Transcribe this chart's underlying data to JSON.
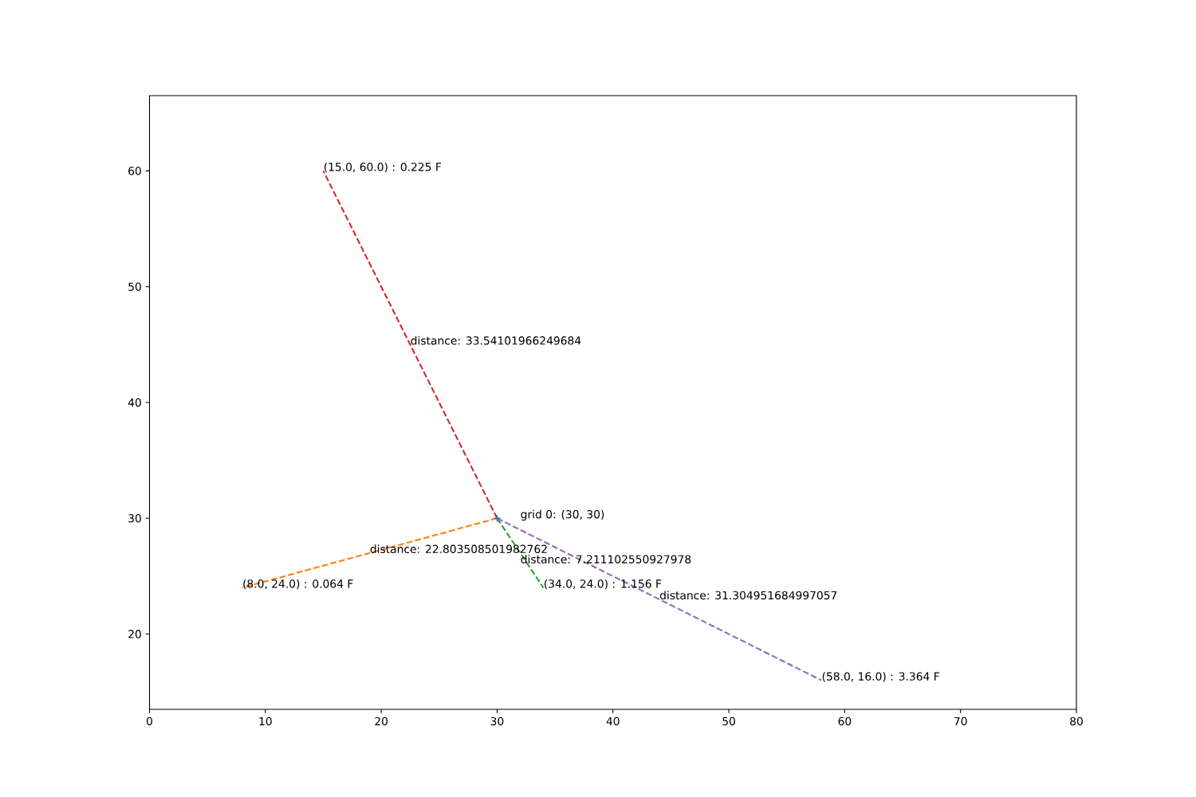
{
  "chart_data": {
    "type": "line",
    "xlim": [
      0,
      80
    ],
    "ylim": [
      13.5,
      66.5
    ],
    "xticks": [
      0,
      10,
      20,
      30,
      40,
      50,
      60,
      70,
      80
    ],
    "yticks": [
      20,
      30,
      40,
      50,
      60
    ],
    "line_style": "dashed",
    "series": [
      {
        "type": "scatter",
        "marker": "cross",
        "color": "#1f77b4",
        "x": [
          30
        ],
        "values": [
          30
        ]
      },
      {
        "color": "#ff7f0e",
        "x": [
          30,
          8
        ],
        "values": [
          30,
          24
        ]
      },
      {
        "color": "#2ca02c",
        "x": [
          30,
          34
        ],
        "values": [
          30,
          24
        ]
      },
      {
        "color": "#d62728",
        "x": [
          30,
          15
        ],
        "values": [
          30,
          60
        ]
      },
      {
        "color": "#9467bd",
        "x": [
          30,
          58
        ],
        "values": [
          30,
          16
        ]
      }
    ],
    "annotations": [
      {
        "text": "grid 0: (30, 30)",
        "x": 30,
        "y": 30
      },
      {
        "text": "(8.0, 24.0) : 0.064 F",
        "x": 8,
        "y": 24
      },
      {
        "text": "distance: 22.803508501982762",
        "x": 19,
        "y": 27
      },
      {
        "text": "(34.0, 24.0) : 1.156 F",
        "x": 34,
        "y": 24
      },
      {
        "text": "distance: 7.211102550927978",
        "x": 32,
        "y": 27
      },
      {
        "text": "(15.0, 60.0) : 0.225 F",
        "x": 15,
        "y": 60
      },
      {
        "text": "distance: 33.54101966249684",
        "x": 22.5,
        "y": 45
      },
      {
        "text": "(58.0, 16.0) : 3.364 F",
        "x": 58,
        "y": 16
      },
      {
        "text": "distance: 31.304951684997057",
        "x": 44,
        "y": 23
      }
    ]
  }
}
